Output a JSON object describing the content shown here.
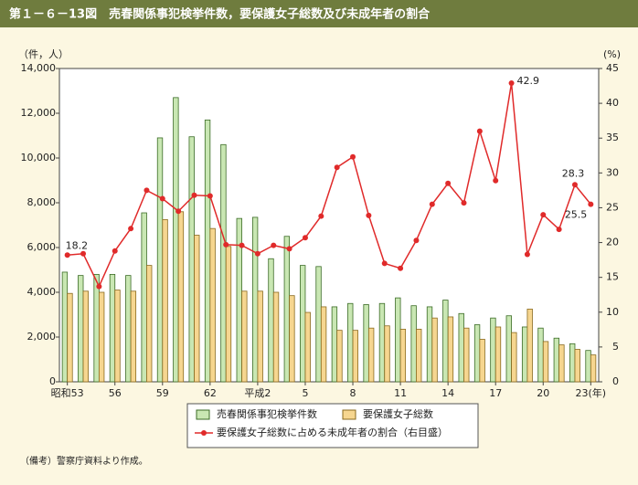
{
  "chart_data": {
    "type": "bar",
    "title": "第１－６－13図　売春関係事犯検挙件数，要保護女子総数及び未成年者の割合",
    "y_axis_label": "（件，人）",
    "y2_axis_label": "(%)",
    "note": "（備考）警察庁資料より作成。",
    "categories": [
      "昭和53",
      null,
      null,
      "56",
      null,
      null,
      "59",
      null,
      null,
      "62",
      null,
      null,
      "平成2",
      null,
      null,
      "5",
      null,
      null,
      "8",
      null,
      null,
      "11",
      null,
      null,
      "14",
      null,
      null,
      "17",
      null,
      null,
      "20",
      null,
      null,
      "23(年)"
    ],
    "series": [
      {
        "name": "売春関係事犯検挙件数",
        "type": "bar",
        "color": "#c9e7b3",
        "values": [
          4900,
          4750,
          4800,
          4800,
          4750,
          7550,
          10900,
          12700,
          10950,
          11700,
          10600,
          7300,
          7350,
          5500,
          6500,
          5200,
          5150,
          3350,
          3500,
          3450,
          3500,
          3750,
          3400,
          3350,
          3650,
          3050,
          2550,
          2850,
          2950,
          2450,
          2400,
          1950,
          1700,
          1400
        ]
      },
      {
        "name": "要保護女子総数",
        "type": "bar",
        "color": "#f6d690",
        "values": [
          3950,
          4050,
          4000,
          4100,
          4050,
          5200,
          7250,
          7600,
          6550,
          6850,
          6050,
          4050,
          4050,
          4000,
          3850,
          3100,
          3350,
          2300,
          2300,
          2400,
          2500,
          2350,
          2350,
          2850,
          2900,
          2400,
          1900,
          2450,
          2200,
          3250,
          1800,
          1650,
          1450,
          1200
        ]
      },
      {
        "name": "要保護女子総数に占める未成年者の割合（右目盛）",
        "type": "line",
        "axis": "y2",
        "color": "#e02a2a",
        "values": [
          18.2,
          18.4,
          13.7,
          18.8,
          22,
          27.5,
          26.3,
          24.5,
          26.8,
          26.7,
          19.7,
          19.6,
          18.4,
          19.6,
          19.1,
          20.7,
          23.8,
          30.8,
          32.3,
          23.9,
          17,
          16.3,
          20.3,
          25.5,
          28.5,
          25.7,
          36,
          28.9,
          42.9,
          18.3,
          24,
          21.9,
          28.3,
          25.5
        ]
      }
    ],
    "ylim": [
      0,
      14000
    ],
    "yticks": [
      0,
      {
        "value": 2000,
        "label": "2,000"
      },
      {
        "value": 4000,
        "label": "4,000"
      },
      {
        "value": 6000,
        "label": "6,000"
      },
      {
        "value": 8000,
        "label": "8,000"
      },
      {
        "value": 10000,
        "label": "10,000"
      },
      {
        "value": 12000,
        "label": "12,000"
      },
      {
        "value": 14000,
        "label": "14,000"
      }
    ],
    "y2lim": [
      0,
      45
    ],
    "y2ticks": [
      0,
      5,
      10,
      15,
      20,
      25,
      30,
      35,
      40,
      45
    ]
  }
}
